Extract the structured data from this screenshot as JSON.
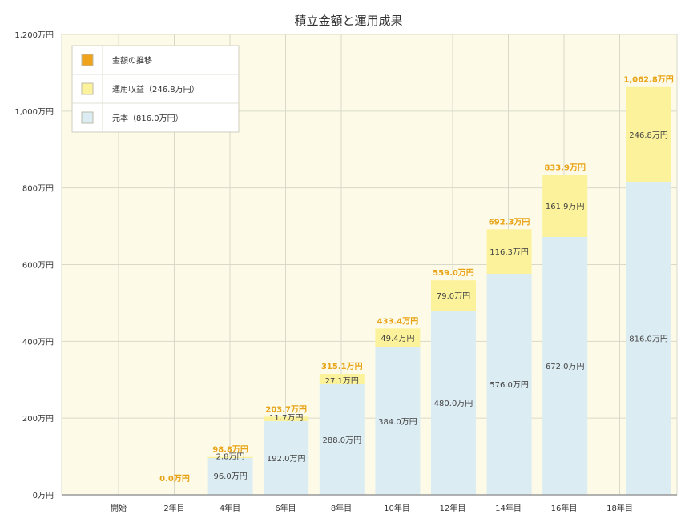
{
  "chart_data": {
    "type": "bar",
    "stacked": true,
    "title": "積立金額と運用成果",
    "categories": [
      "開始",
      "2年目",
      "4年目",
      "6年目",
      "8年目",
      "10年目",
      "12年目",
      "14年目",
      "16年目",
      "18年目"
    ],
    "series": [
      {
        "name": "元本（816.0万円）",
        "color": "#dcecf3",
        "values": [
          0,
          96.0,
          192.0,
          288.0,
          384.0,
          480.0,
          576.0,
          672.0,
          null,
          816.0
        ],
        "labels": [
          "",
          "96.0万円",
          "192.0万円",
          "288.0万円",
          "384.0万円",
          "480.0万円",
          "576.0万円",
          "672.0万円",
          "",
          "816.0万円"
        ]
      },
      {
        "name": "運用収益（246.8万円）",
        "color": "#fbf29b",
        "values": [
          0,
          2.8,
          11.7,
          27.1,
          49.4,
          79.0,
          116.3,
          161.9,
          null,
          246.8
        ],
        "labels": [
          "",
          "2.8万円",
          "11.7万円",
          "27.1万円",
          "49.4万円",
          "79.0万円",
          "116.3万円",
          "161.9万円",
          "",
          "246.8万円"
        ]
      }
    ],
    "totals": {
      "name": "金額の推移",
      "color": "#f0a21b",
      "values": [
        0,
        98.8,
        203.7,
        315.1,
        433.4,
        559.0,
        692.3,
        833.9,
        null,
        1062.8
      ],
      "labels": [
        "0.0万円",
        "98.8万円",
        "203.7万円",
        "315.1万円",
        "433.4万円",
        "559.0万円",
        "692.3万円",
        "833.9万円",
        "",
        "1,062.8万円"
      ]
    },
    "bar_positions": [
      0,
      1,
      2,
      3,
      4,
      5,
      6,
      7,
      null,
      8.5
    ],
    "ylim": [
      0,
      1200
    ],
    "yticks": [
      0,
      200,
      400,
      600,
      800,
      1000,
      1200
    ],
    "ytick_labels": [
      "0万円",
      "200万円",
      "400万円",
      "600万円",
      "800万円",
      "1,000万円",
      "1,200万円"
    ],
    "grid": true,
    "legend_position": "top-left",
    "colors": {
      "plot_background": "#fdfbe7",
      "grid": "#d9d9c9",
      "axis": "#999999"
    }
  }
}
